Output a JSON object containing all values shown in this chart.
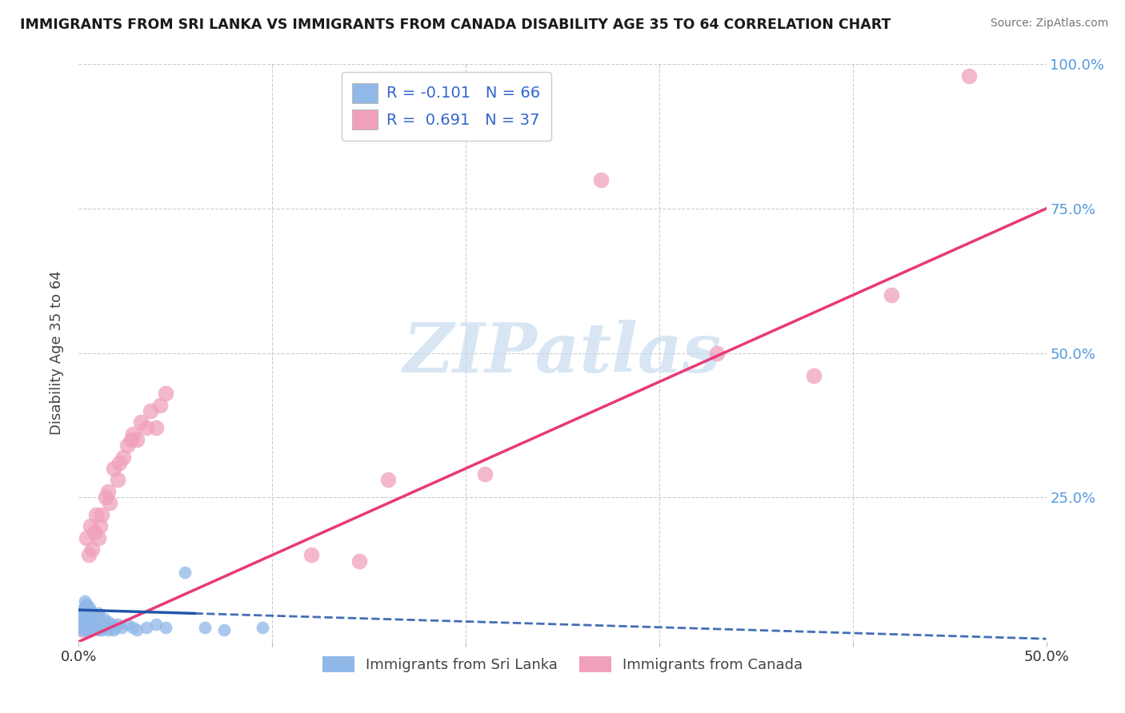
{
  "title": "IMMIGRANTS FROM SRI LANKA VS IMMIGRANTS FROM CANADA DISABILITY AGE 35 TO 64 CORRELATION CHART",
  "source": "Source: ZipAtlas.com",
  "ylabel": "Disability Age 35 to 64",
  "xlim": [
    0.0,
    0.5
  ],
  "ylim": [
    0.0,
    1.0
  ],
  "xticks": [
    0.0,
    0.1,
    0.2,
    0.3,
    0.4,
    0.5
  ],
  "xticklabels": [
    "0.0%",
    "",
    "",
    "",
    "",
    "50.0%"
  ],
  "yticks": [
    0.0,
    0.25,
    0.5,
    0.75,
    1.0
  ],
  "right_yticklabels": [
    "",
    "25.0%",
    "50.0%",
    "75.0%",
    "100.0%"
  ],
  "sri_lanka_R": -0.101,
  "sri_lanka_N": 66,
  "canada_R": 0.691,
  "canada_N": 37,
  "sri_lanka_color": "#90b8e8",
  "canada_color": "#f0a0bc",
  "sri_lanka_line_color": "#2255aa",
  "canada_line_color": "#e83878",
  "watermark_text": "ZIPatlas",
  "watermark_color": "#c8dcf0",
  "background_color": "#ffffff",
  "grid_color": "#cccccc",
  "tick_label_color_right": "#5599dd",
  "sri_lanka_x": [
    0.001,
    0.001,
    0.002,
    0.002,
    0.002,
    0.002,
    0.002,
    0.002,
    0.002,
    0.003,
    0.003,
    0.003,
    0.003,
    0.003,
    0.003,
    0.003,
    0.003,
    0.004,
    0.004,
    0.004,
    0.004,
    0.004,
    0.004,
    0.005,
    0.005,
    0.005,
    0.005,
    0.006,
    0.006,
    0.006,
    0.006,
    0.007,
    0.007,
    0.007,
    0.008,
    0.008,
    0.009,
    0.009,
    0.01,
    0.01,
    0.01,
    0.011,
    0.011,
    0.012,
    0.012,
    0.013,
    0.013,
    0.014,
    0.015,
    0.015,
    0.016,
    0.017,
    0.018,
    0.019,
    0.02,
    0.022,
    0.025,
    0.028,
    0.03,
    0.035,
    0.04,
    0.045,
    0.055,
    0.065,
    0.075,
    0.095
  ],
  "sri_lanka_y": [
    0.03,
    0.025,
    0.02,
    0.025,
    0.03,
    0.035,
    0.04,
    0.05,
    0.055,
    0.025,
    0.03,
    0.035,
    0.04,
    0.045,
    0.05,
    0.06,
    0.07,
    0.02,
    0.025,
    0.03,
    0.04,
    0.05,
    0.065,
    0.025,
    0.035,
    0.045,
    0.06,
    0.02,
    0.03,
    0.04,
    0.055,
    0.025,
    0.035,
    0.05,
    0.025,
    0.04,
    0.03,
    0.045,
    0.02,
    0.03,
    0.05,
    0.025,
    0.04,
    0.02,
    0.035,
    0.025,
    0.04,
    0.03,
    0.02,
    0.035,
    0.025,
    0.03,
    0.02,
    0.025,
    0.03,
    0.025,
    0.03,
    0.025,
    0.02,
    0.025,
    0.03,
    0.025,
    0.12,
    0.025,
    0.02,
    0.025
  ],
  "canada_x": [
    0.002,
    0.004,
    0.005,
    0.006,
    0.007,
    0.008,
    0.009,
    0.01,
    0.011,
    0.012,
    0.014,
    0.015,
    0.016,
    0.018,
    0.02,
    0.021,
    0.023,
    0.025,
    0.027,
    0.028,
    0.03,
    0.032,
    0.035,
    0.037,
    0.04,
    0.042,
    0.045,
    0.12,
    0.145,
    0.16,
    0.21,
    0.27,
    0.33,
    0.38,
    0.42,
    0.46,
    0.005
  ],
  "canada_y": [
    0.02,
    0.18,
    0.15,
    0.2,
    0.16,
    0.19,
    0.22,
    0.18,
    0.2,
    0.22,
    0.25,
    0.26,
    0.24,
    0.3,
    0.28,
    0.31,
    0.32,
    0.34,
    0.35,
    0.36,
    0.35,
    0.38,
    0.37,
    0.4,
    0.37,
    0.41,
    0.43,
    0.15,
    0.14,
    0.28,
    0.29,
    0.8,
    0.5,
    0.46,
    0.6,
    0.98,
    0.02
  ],
  "canada_trend_x0": 0.0,
  "canada_trend_y0": 0.0,
  "canada_trend_x1": 0.5,
  "canada_trend_y1": 0.75,
  "sri_lanka_trend_x0": 0.0,
  "sri_lanka_trend_y0": 0.055,
  "sri_lanka_trend_x1": 0.5,
  "sri_lanka_trend_y1": 0.005
}
